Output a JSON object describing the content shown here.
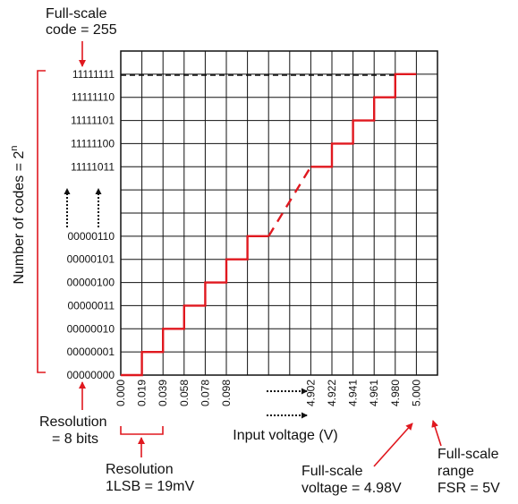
{
  "annotations": {
    "full_scale_code": [
      "Full-scale",
      "code = 255"
    ],
    "resolution_bits": [
      "Resolution",
      "= 8 bits"
    ],
    "resolution_lsb": [
      "Resolution",
      "1LSB = 19mV"
    ],
    "full_scale_voltage": [
      "Full-scale",
      "voltage = 4.98V"
    ],
    "full_scale_range": [
      "Full-scale",
      "range",
      "FSR = 5V"
    ]
  },
  "chart_data": {
    "type": "line",
    "xlabel": "Input voltage (V)",
    "ylabel": "Number of codes = 2",
    "ylabel_superscript": "n",
    "y_codes_low": [
      "00000000",
      "00000001",
      "00000010",
      "00000011",
      "00000100",
      "00000101",
      "00000110"
    ],
    "y_codes_high": [
      "11111011",
      "11111100",
      "11111101",
      "11111110",
      "11111111"
    ],
    "x_ticks_low": [
      "0.000",
      "0.019",
      "0.039",
      "0.058",
      "0.078",
      "0.098"
    ],
    "x_ticks_high": [
      "4.902",
      "4.922",
      "4.941",
      "4.961",
      "4.980",
      "5.000"
    ],
    "series": [
      {
        "steps_low": [
          {
            "code": "00000000",
            "from": "0.000",
            "to": "0.019"
          },
          {
            "code": "00000001",
            "from": "0.019",
            "to": "0.039"
          },
          {
            "code": "00000010",
            "from": "0.039",
            "to": "0.058"
          },
          {
            "code": "00000011",
            "from": "0.058",
            "to": "0.078"
          },
          {
            "code": "00000100",
            "from": "0.078",
            "to": "0.098"
          },
          {
            "code": "00000101",
            "from": "0.098",
            "to": "0.117"
          },
          {
            "code": "00000110",
            "from": "0.117",
            "to": "0.137"
          }
        ],
        "steps_high": [
          {
            "code": "11111011",
            "from": "4.882",
            "to": "4.902"
          },
          {
            "code": "11111100",
            "from": "4.902",
            "to": "4.922"
          },
          {
            "code": "11111101",
            "from": "4.922",
            "to": "4.941"
          },
          {
            "code": "11111110",
            "from": "4.941",
            "to": "4.961"
          },
          {
            "code": "11111111",
            "from": "4.961",
            "to": "4.980"
          }
        ]
      }
    ],
    "full_scale_code": "11111111",
    "grid": true,
    "colors": {
      "staircase": "#e0181f",
      "annotation": "#e0181f",
      "grid": "#000000",
      "full_scale_line": "#000000"
    }
  }
}
